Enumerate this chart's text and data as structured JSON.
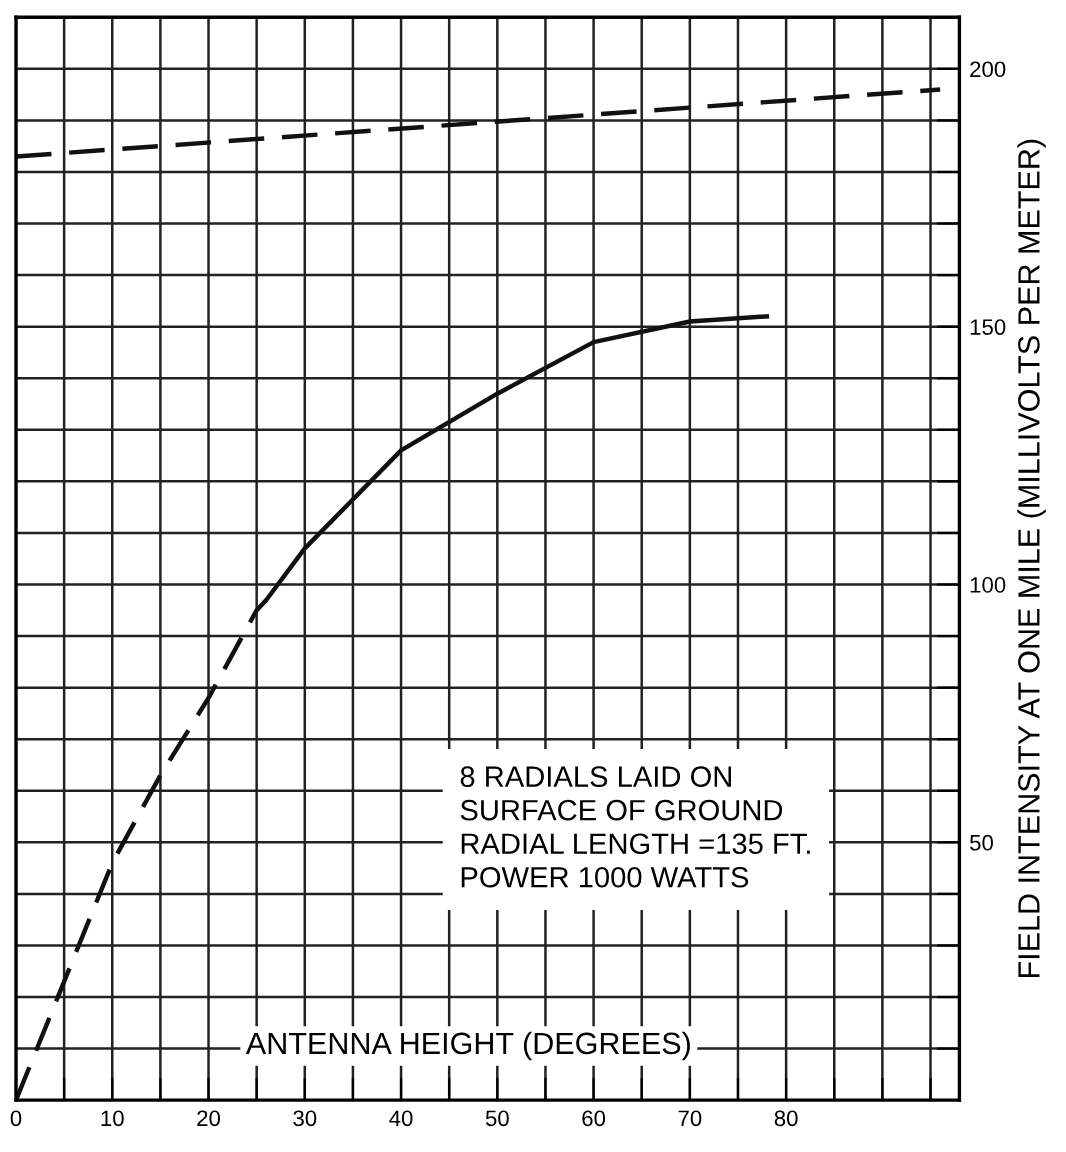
{
  "chart_data": {
    "type": "line",
    "xlabel": "ANTENNA HEIGHT (DEGREES)",
    "ylabel": "FIELD INTENSITY AT ONE MILE (MILLIVOLTS PER METER)",
    "series": [
      {
        "color": "#111111",
        "line_style": "dashed",
        "x": [
          0,
          96
        ],
        "values": [
          183,
          196
        ]
      },
      {
        "color": "#111111",
        "line_style": "dashed",
        "x": [
          0,
          5,
          10,
          15,
          20,
          25,
          26
        ],
        "values": [
          0,
          23,
          46,
          63,
          78,
          95,
          97
        ]
      },
      {
        "color": "#111111",
        "line_style": "solid",
        "x": [
          26,
          30,
          40,
          50,
          60,
          70,
          78
        ],
        "values": [
          97,
          107,
          126,
          137,
          147,
          151,
          152
        ]
      }
    ],
    "annotations": [
      "8 RADIALS LAID ON\nSURFACE OF GROUND\nRADIAL LENGTH =135 FT.\nPOWER 1000 WATTS"
    ],
    "xlim": [
      0,
      98
    ],
    "ylim": [
      0,
      210
    ],
    "xticks": [
      0,
      {
        "value": 5,
        "label": null
      },
      10,
      {
        "value": 15,
        "label": null
      },
      20,
      {
        "value": 25,
        "label": null
      },
      30,
      {
        "value": 35,
        "label": null
      },
      40,
      {
        "value": 45,
        "label": null
      },
      50,
      {
        "value": 55,
        "label": null
      },
      60,
      {
        "value": 65,
        "label": null
      },
      70,
      {
        "value": 75,
        "label": null
      },
      80,
      {
        "value": 85,
        "label": null
      },
      {
        "value": 90,
        "label": null
      },
      {
        "value": 95,
        "label": null
      }
    ],
    "yticks": [
      {
        "value": 10,
        "label": null
      },
      {
        "value": 20,
        "label": null
      },
      {
        "value": 30,
        "label": null
      },
      {
        "value": 40,
        "label": null
      },
      50,
      {
        "value": 60,
        "label": null
      },
      {
        "value": 70,
        "label": null
      },
      {
        "value": 80,
        "label": null
      },
      {
        "value": 90,
        "label": null
      },
      100,
      {
        "value": 110,
        "label": null
      },
      {
        "value": 120,
        "label": null
      },
      {
        "value": 130,
        "label": null
      },
      {
        "value": 140,
        "label": null
      },
      150,
      {
        "value": 160,
        "label": null
      },
      {
        "value": 170,
        "label": null
      },
      {
        "value": 180,
        "label": null
      },
      {
        "value": 190,
        "label": null
      },
      200
    ],
    "grid": true,
    "legend": false
  }
}
